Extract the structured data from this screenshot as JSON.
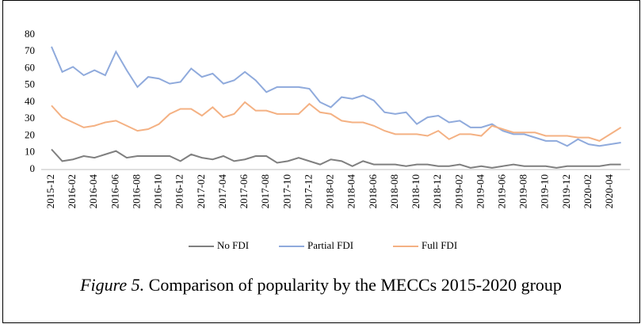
{
  "chart_data": {
    "type": "line",
    "categories": [
      "2015-12",
      null,
      "2016-02",
      null,
      "2016-04",
      null,
      "2016-06",
      null,
      "2016-08",
      null,
      "2016-10",
      null,
      "2016-12",
      null,
      "2017-02",
      null,
      "2017-04",
      null,
      "2017-06",
      null,
      "2017-08",
      null,
      "2017-10",
      null,
      "2017-12",
      null,
      "2018-02",
      null,
      "2018-04",
      null,
      "2018-06",
      null,
      "2018-08",
      null,
      "2018-10",
      null,
      "2018-12",
      null,
      "2019-02",
      null,
      "2019-04",
      null,
      "2019-06",
      null,
      "2019-08",
      null,
      "2019-10",
      null,
      "2019-12",
      null,
      "2020-02",
      null,
      "2020-04",
      null
    ],
    "series": [
      {
        "name": "No FDI",
        "color": "#7f7f7f",
        "values": [
          12,
          5,
          6,
          8,
          7,
          9,
          11,
          7,
          8,
          8,
          8,
          8,
          5,
          9,
          7,
          6,
          8,
          5,
          6,
          8,
          8,
          4,
          5,
          7,
          5,
          3,
          6,
          5,
          2,
          5,
          3,
          3,
          3,
          2,
          3,
          3,
          2,
          2,
          3,
          1,
          2,
          1,
          2,
          3,
          2,
          2,
          2,
          1,
          2,
          2,
          2,
          2,
          3,
          3
        ]
      },
      {
        "name": "Partial FDI",
        "color": "#8faadc",
        "values": [
          73,
          58,
          61,
          56,
          59,
          56,
          70,
          59,
          49,
          55,
          54,
          51,
          52,
          60,
          55,
          57,
          51,
          53,
          58,
          53,
          46,
          49,
          49,
          49,
          48,
          40,
          37,
          43,
          42,
          44,
          41,
          34,
          33,
          34,
          27,
          31,
          32,
          28,
          29,
          25,
          25,
          27,
          23,
          21,
          21,
          19,
          17,
          17,
          14,
          18,
          15,
          14,
          15,
          16
        ]
      },
      {
        "name": "Full FDI",
        "color": "#f4b183",
        "values": [
          38,
          31,
          28,
          25,
          26,
          28,
          29,
          26,
          23,
          24,
          27,
          33,
          36,
          36,
          32,
          37,
          31,
          33,
          40,
          35,
          35,
          33,
          33,
          33,
          39,
          34,
          33,
          29,
          28,
          28,
          26,
          23,
          21,
          21,
          21,
          20,
          23,
          18,
          21,
          21,
          20,
          26,
          24,
          22,
          22,
          22,
          20,
          20,
          20,
          19,
          19,
          17,
          21,
          25
        ]
      }
    ],
    "ylim": [
      0,
      80
    ],
    "yticks": [
      0,
      10,
      20,
      30,
      40,
      50,
      60,
      70,
      80
    ],
    "grid": false,
    "legend": "bottom",
    "caption": {
      "label": "Figure 5.",
      "text": "Comparison of popularity by the MECCs 2015-2020 group"
    }
  }
}
